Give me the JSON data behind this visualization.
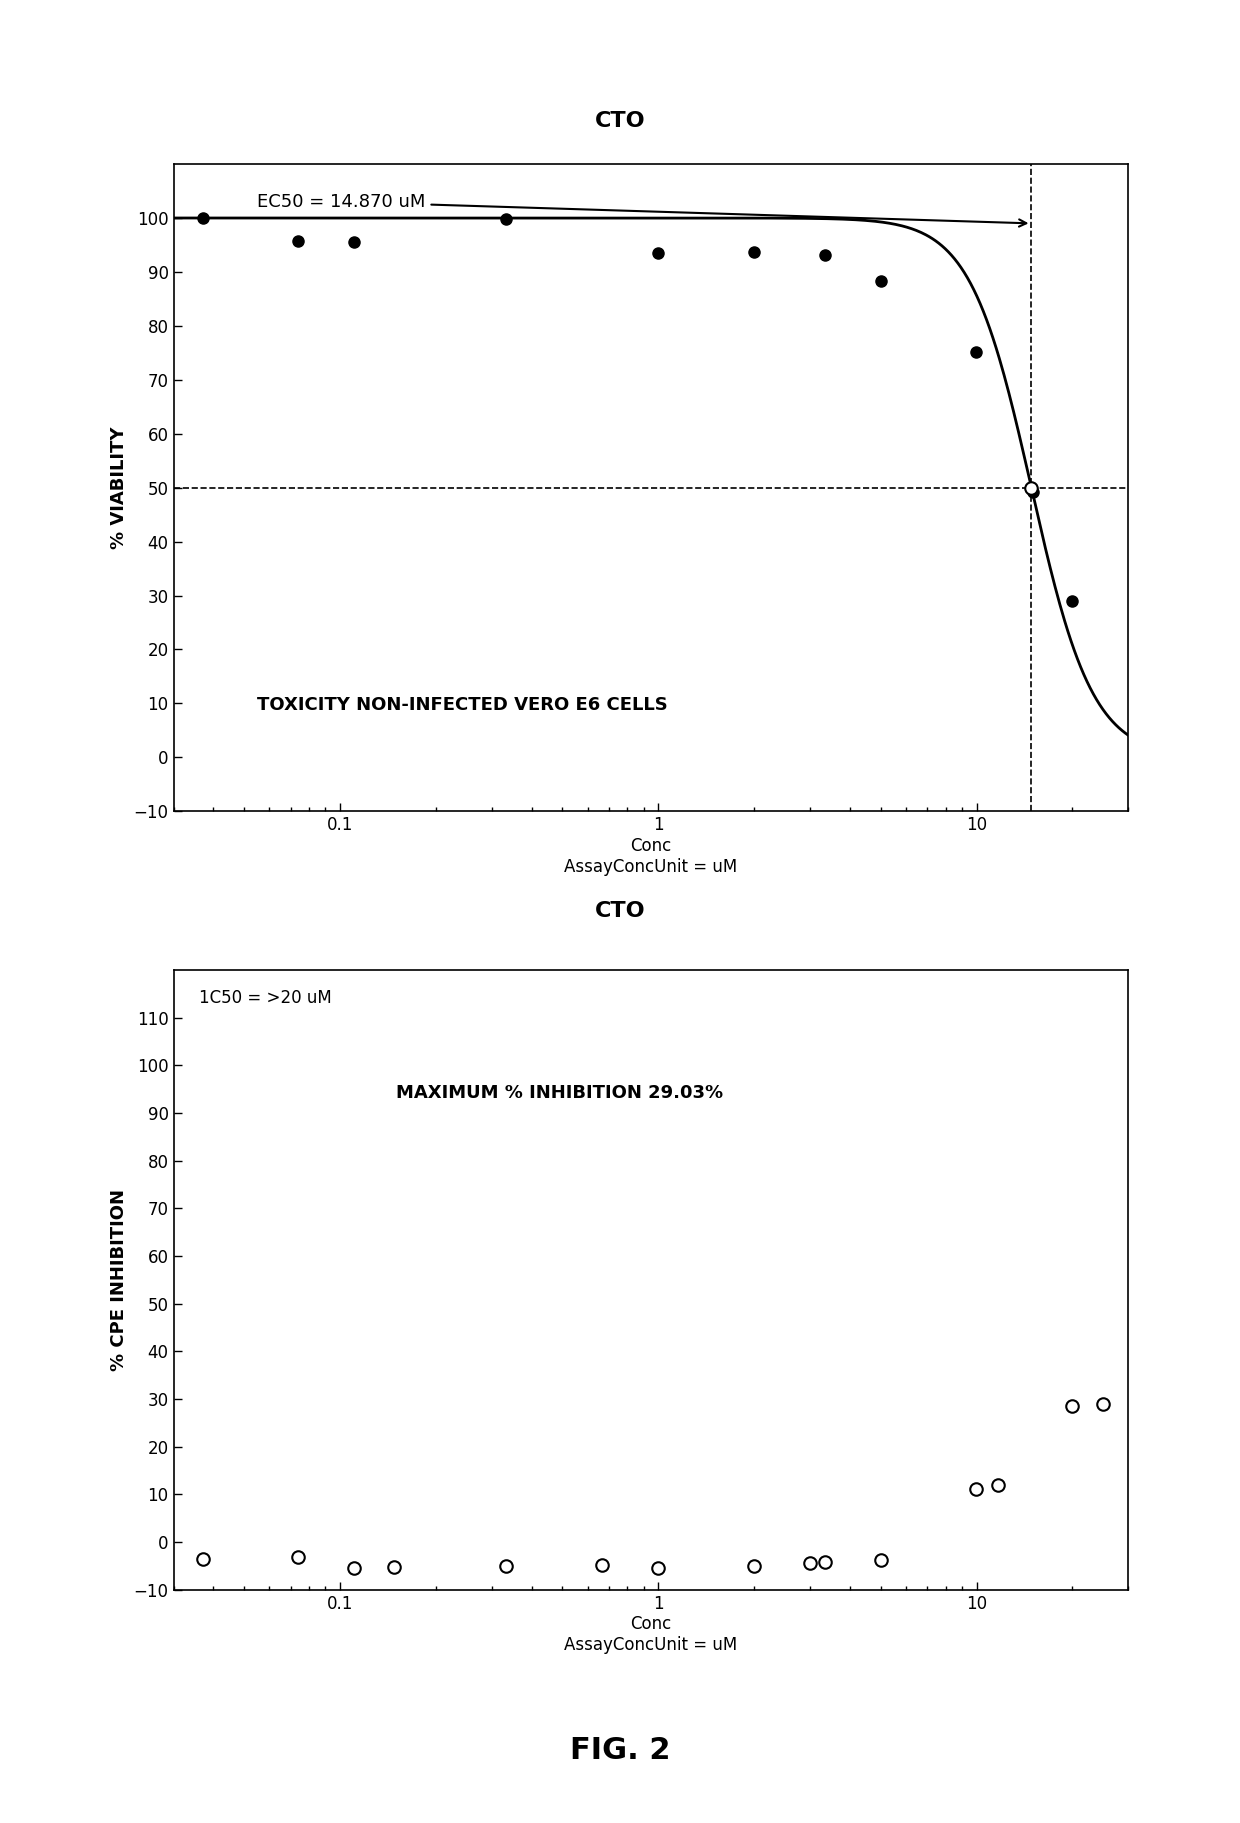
{
  "plot1": {
    "title": "CTO",
    "xlabel": "Conc\nAssayConcUnit = uM",
    "ylabel": "% VIABILITY",
    "annotation": "EC50 = 14.870 uM",
    "inner_text": "TOXICITY NON-INFECTED VERO E6 CELLS",
    "ec50": 14.87,
    "ylim": [
      -10,
      110
    ],
    "xlim": [
      0.03,
      30
    ],
    "data_x": [
      0.037,
      0.074,
      0.111,
      0.333,
      0.999,
      1.998,
      3.33,
      4.997,
      9.994,
      14.991,
      19.988
    ],
    "data_y": [
      100.0,
      95.8,
      95.5,
      99.8,
      93.5,
      93.7,
      93.2,
      88.3,
      75.1,
      49.2,
      29.0
    ],
    "yticks": [
      -10,
      0,
      10,
      20,
      30,
      40,
      50,
      60,
      70,
      80,
      90,
      100
    ],
    "xticks": [
      0.1,
      1,
      10
    ]
  },
  "plot2": {
    "title": "CTO",
    "xlabel": "Conc\nAssayConcUnit = uM",
    "ylabel": "% CPE INHIBITION",
    "annotation": "1C50 = >20 uM",
    "inner_text": "MAXIMUM % INHIBITION 29.03%",
    "ylim": [
      -10,
      120
    ],
    "xlim": [
      0.03,
      30
    ],
    "data_x": [
      0.037,
      0.074,
      0.111,
      0.148,
      0.333,
      0.666,
      0.999,
      1.998,
      2.997,
      3.33,
      4.997,
      9.994,
      11.66,
      19.988,
      24.985
    ],
    "data_y": [
      -3.5,
      -3.2,
      -5.5,
      -5.2,
      -5.0,
      -4.8,
      -5.5,
      -5.1,
      -4.5,
      -4.2,
      -3.8,
      11.2,
      12.0,
      28.5,
      29.0
    ],
    "yticks": [
      -10,
      0,
      10,
      20,
      30,
      40,
      50,
      60,
      70,
      80,
      90,
      100,
      110
    ],
    "xticks": [
      0.1,
      1,
      10
    ]
  },
  "fig_label": "FIG. 2",
  "background_color": "#ffffff",
  "text_color": "#000000"
}
